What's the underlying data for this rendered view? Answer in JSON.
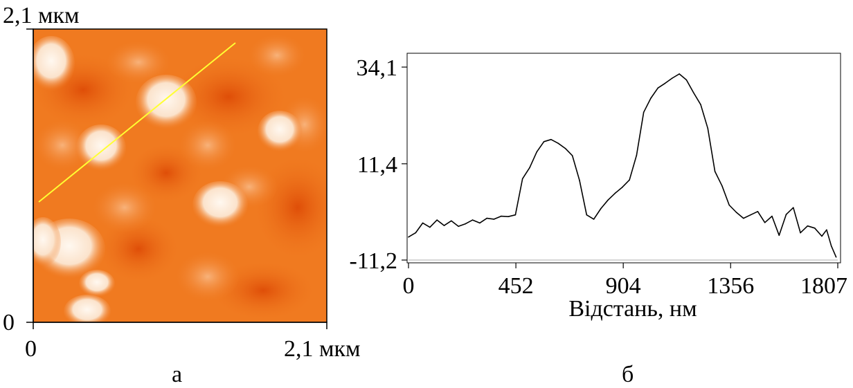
{
  "panel_a": {
    "caption": "а",
    "y_top_label": "2,1 мкм",
    "y_bottom_label": "0",
    "x_left_label": "0",
    "x_right_label": "2,1 мкм",
    "colors": {
      "base": "#f0781e",
      "dark": "#e3530a",
      "light": "#fcecdd",
      "scan_line": "#ffff33"
    }
  },
  "chart_data": {
    "type": "line",
    "caption": "б",
    "xlabel": "Відстань, нм",
    "ylabel": "",
    "x_ticks": [
      "0",
      "452",
      "904",
      "1356",
      "1807"
    ],
    "y_ticks": [
      "34,1",
      "11,4",
      "-11,2"
    ],
    "xlim": [
      0,
      1807
    ],
    "ylim": [
      -11.2,
      34.1
    ],
    "line_color": "#000000",
    "series": [
      {
        "x": [
          0,
          30,
          60,
          90,
          120,
          150,
          180,
          210,
          240,
          270,
          300,
          330,
          360,
          390,
          420,
          450,
          480,
          510,
          540,
          570,
          600,
          630,
          660,
          690,
          720,
          750,
          780,
          810,
          840,
          870,
          900,
          930,
          960,
          990,
          1020,
          1050,
          1080,
          1110,
          1140,
          1170,
          1200,
          1230,
          1260,
          1290,
          1320,
          1350,
          1380,
          1410,
          1440,
          1470,
          1500,
          1530,
          1560,
          1590,
          1620,
          1650,
          1680,
          1710,
          1740,
          1760,
          1780,
          1800
        ],
        "values": [
          -5.8,
          -4.8,
          -2.5,
          -3.5,
          -1.8,
          -3.1,
          -2.0,
          -3.3,
          -2.7,
          -1.8,
          -2.5,
          -1.4,
          -1.6,
          -0.9,
          -1.0,
          -0.6,
          7.9,
          10.5,
          14.2,
          16.6,
          17.1,
          16.2,
          15.0,
          13.3,
          7.5,
          -0.6,
          -1.6,
          0.9,
          2.9,
          4.5,
          5.9,
          7.6,
          13.4,
          23.5,
          26.8,
          29.2,
          30.3,
          31.5,
          32.5,
          31.1,
          28.1,
          25.3,
          19.7,
          9.6,
          6.2,
          1.7,
          0.0,
          -1.4,
          -0.6,
          0.2,
          -2.4,
          -0.9,
          -5.4,
          -0.5,
          1.1,
          -4.8,
          -3.2,
          -3.7,
          -5.6,
          -4.1,
          -7.9,
          -10.5
        ]
      }
    ]
  }
}
